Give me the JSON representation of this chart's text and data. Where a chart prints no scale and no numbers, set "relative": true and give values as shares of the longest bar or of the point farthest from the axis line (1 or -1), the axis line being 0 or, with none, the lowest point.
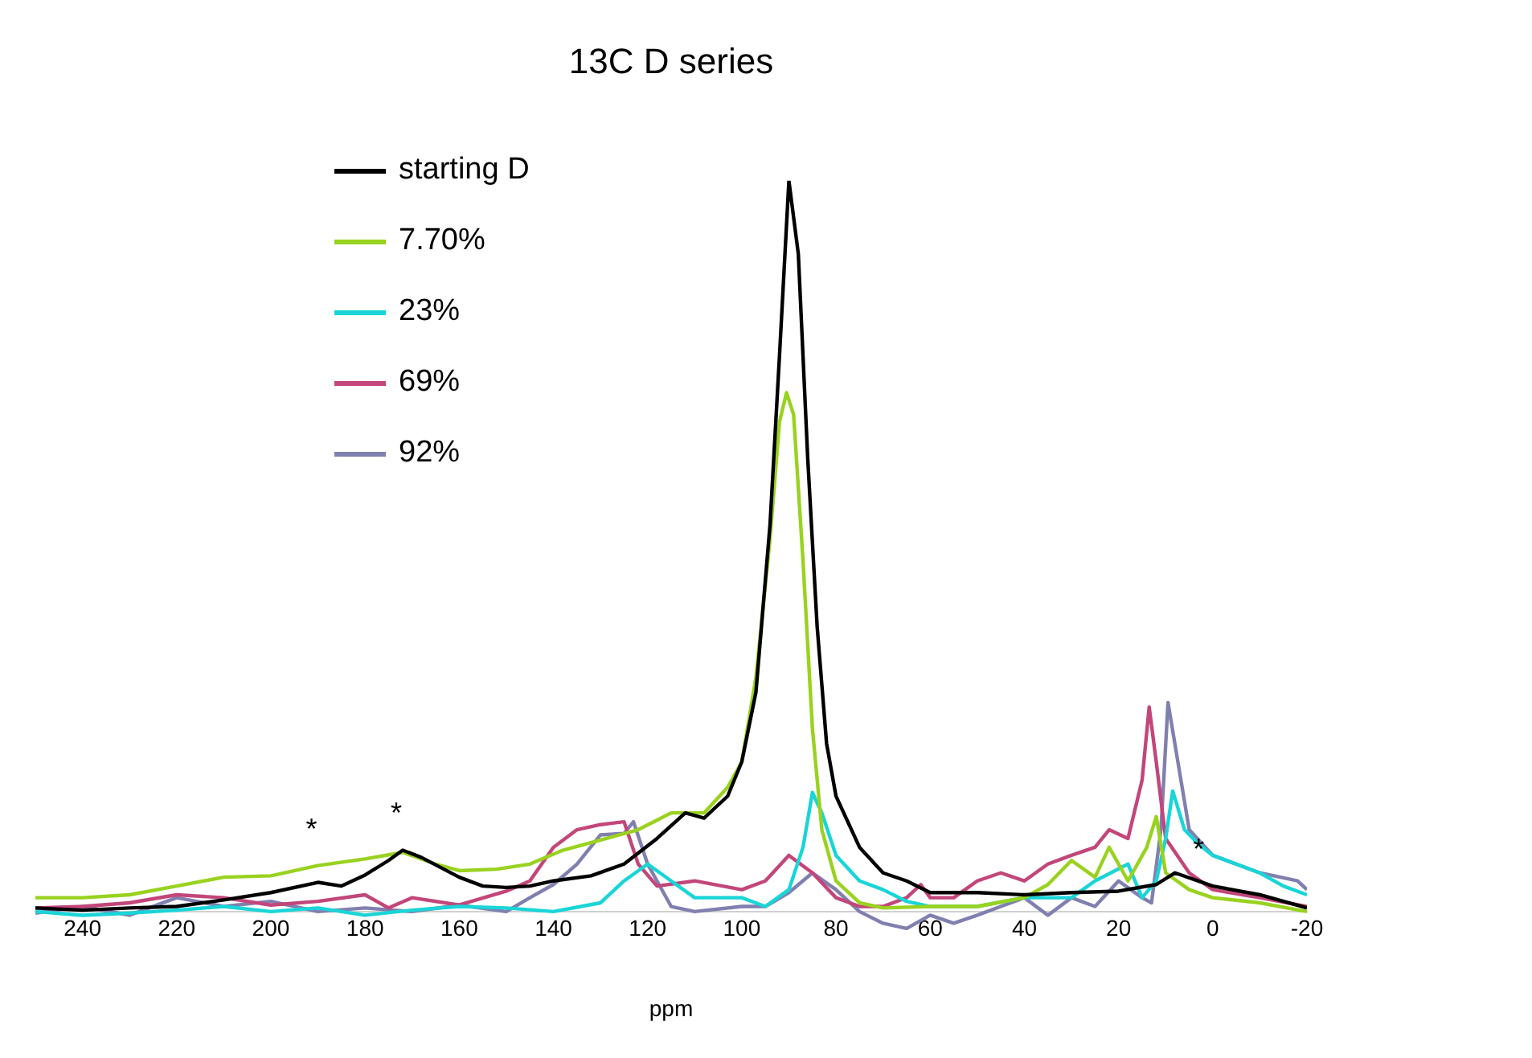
{
  "chart_data": {
    "type": "line",
    "title": "13C D series",
    "xlabel": "ppm",
    "relative": true,
    "xlim": [
      250,
      -20
    ],
    "xticks": [
      240,
      220,
      200,
      180,
      160,
      140,
      120,
      100,
      80,
      60,
      40,
      20,
      0,
      -20
    ],
    "grid": false,
    "legend": "top left",
    "marker": "none",
    "line_style": "solid",
    "annotations": [
      {
        "text": "*",
        "x": 190,
        "y": 0.063
      },
      {
        "text": "*",
        "x": 172,
        "y": 0.084
      },
      {
        "text": "*",
        "x": 3,
        "y": 0.092
      }
    ],
    "series": [
      {
        "name": "starting D",
        "color": "#000000",
        "x": [
          250,
          240,
          230,
          220,
          210,
          200,
          190,
          185,
          180,
          175,
          172,
          168,
          160,
          155,
          150,
          145,
          140,
          132,
          125,
          118,
          112,
          108,
          103,
          100,
          97,
          94,
          92,
          90,
          88,
          86,
          84,
          82,
          80,
          75,
          70,
          65,
          60,
          50,
          40,
          30,
          20,
          12,
          8,
          0,
          -10,
          -20
        ],
        "values": [
          0.005,
          0.002,
          0.005,
          0.007,
          0.016,
          0.026,
          0.04,
          0.035,
          0.05,
          0.07,
          0.084,
          0.074,
          0.047,
          0.035,
          0.033,
          0.035,
          0.042,
          0.049,
          0.065,
          0.1,
          0.135,
          0.128,
          0.158,
          0.205,
          0.3,
          0.53,
          0.76,
          1,
          0.9,
          0.62,
          0.39,
          0.23,
          0.158,
          0.088,
          0.053,
          0.042,
          0.026,
          0.026,
          0.023,
          0.026,
          0.028,
          0.037,
          0.053,
          0.035,
          0.023,
          0.005
        ]
      },
      {
        "name": "7.70%",
        "color": "#99d21f",
        "x": [
          250,
          240,
          230,
          220,
          210,
          200,
          190,
          180,
          172,
          165,
          160,
          152,
          145,
          138,
          130,
          122,
          115,
          108,
          103,
          100,
          97,
          94,
          92,
          90.5,
          89,
          87,
          85,
          83,
          80,
          75,
          70,
          60,
          50,
          40,
          35,
          30,
          25,
          22,
          18,
          14,
          12,
          10,
          5,
          0,
          -10,
          -20
        ],
        "values": [
          0.019,
          0.019,
          0.023,
          0.035,
          0.047,
          0.049,
          0.063,
          0.072,
          0.081,
          0.065,
          0.056,
          0.058,
          0.065,
          0.084,
          0.098,
          0.112,
          0.135,
          0.135,
          0.17,
          0.205,
          0.32,
          0.51,
          0.67,
          0.71,
          0.68,
          0.48,
          0.25,
          0.112,
          0.042,
          0.012,
          0.005,
          0.007,
          0.007,
          0.019,
          0.037,
          0.07,
          0.047,
          0.088,
          0.042,
          0.088,
          0.13,
          0.053,
          0.03,
          0.019,
          0.012,
          0
        ]
      },
      {
        "name": "23%",
        "color": "#19d5d8",
        "x": [
          250,
          240,
          230,
          220,
          210,
          200,
          190,
          180,
          170,
          160,
          150,
          140,
          130,
          125,
          120,
          115,
          110,
          100,
          95,
          90,
          87,
          85,
          83,
          80,
          75,
          70,
          65,
          60,
          50,
          40,
          30,
          25,
          18,
          15,
          12,
          10,
          8.5,
          6,
          3,
          0,
          -10,
          -15,
          -20
        ],
        "values": [
          0,
          -0.005,
          -0.002,
          0.002,
          0.007,
          0,
          0.005,
          -0.005,
          0.002,
          0.007,
          0.005,
          0,
          0.012,
          0.042,
          0.065,
          0.042,
          0.019,
          0.019,
          0.007,
          0.03,
          0.088,
          0.163,
          0.135,
          0.077,
          0.042,
          0.03,
          0.014,
          0.007,
          0.007,
          0.019,
          0.019,
          0.042,
          0.065,
          0.019,
          0.042,
          0.1,
          0.165,
          0.112,
          0.092,
          0.077,
          0.053,
          0.035,
          0.023
        ]
      },
      {
        "name": "69%",
        "color": "#c3467a",
        "x": [
          250,
          240,
          230,
          220,
          210,
          200,
          190,
          180,
          175,
          170,
          160,
          150,
          145,
          140,
          135,
          130,
          125,
          122,
          118,
          110,
          100,
          95,
          90,
          85,
          80,
          75,
          70,
          65,
          62,
          60,
          55,
          50,
          45,
          40,
          35,
          30,
          25,
          22,
          18,
          15,
          13.5,
          12,
          10,
          5,
          0,
          -10,
          -20
        ],
        "values": [
          0.005,
          0.007,
          0.012,
          0.023,
          0.019,
          0.009,
          0.014,
          0.023,
          0.005,
          0.019,
          0.009,
          0.028,
          0.042,
          0.088,
          0.112,
          0.119,
          0.123,
          0.065,
          0.035,
          0.042,
          0.03,
          0.042,
          0.077,
          0.053,
          0.019,
          0.007,
          0.007,
          0.019,
          0.037,
          0.019,
          0.019,
          0.042,
          0.053,
          0.042,
          0.065,
          0.077,
          0.088,
          0.112,
          0.1,
          0.18,
          0.28,
          0.205,
          0.1,
          0.053,
          0.03,
          0.019,
          0.007
        ]
      },
      {
        "name": "92%",
        "color": "#8080b0",
        "x": [
          250,
          240,
          230,
          220,
          210,
          200,
          190,
          180,
          170,
          160,
          150,
          145,
          140,
          135,
          130,
          125,
          123,
          120,
          115,
          110,
          100,
          95,
          90,
          85,
          80,
          75,
          70,
          65,
          60,
          55,
          50,
          45,
          40,
          35,
          30,
          25,
          20,
          15,
          13,
          11,
          9.5,
          8,
          5,
          0,
          -10,
          -18,
          -20
        ],
        "values": [
          -0.002,
          0.007,
          -0.005,
          0.019,
          0.007,
          0.014,
          0,
          0.005,
          0,
          0.009,
          0,
          0.019,
          0.037,
          0.065,
          0.105,
          0.107,
          0.123,
          0.065,
          0.007,
          0,
          0.007,
          0.007,
          0.026,
          0.053,
          0.03,
          0,
          -0.016,
          -0.023,
          -0.005,
          -0.016,
          -0.005,
          0.007,
          0.019,
          -0.005,
          0.019,
          0.007,
          0.042,
          0.019,
          0.012,
          0.112,
          0.286,
          0.228,
          0.112,
          0.077,
          0.053,
          0.042,
          0.03
        ]
      }
    ]
  }
}
